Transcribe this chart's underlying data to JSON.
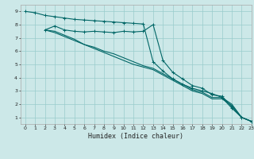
{
  "background_color": "#cce8e8",
  "grid_color": "#99cccc",
  "line_color": "#006666",
  "xlabel": "Humidex (Indice chaleur)",
  "xlim": [
    -0.5,
    23
  ],
  "ylim": [
    0.5,
    9.5
  ],
  "xticks": [
    0,
    1,
    2,
    3,
    4,
    5,
    6,
    7,
    8,
    9,
    10,
    11,
    12,
    13,
    14,
    15,
    16,
    17,
    18,
    19,
    20,
    21,
    22,
    23
  ],
  "yticks": [
    1,
    2,
    3,
    4,
    5,
    6,
    7,
    8,
    9
  ],
  "line1_x": [
    0,
    1,
    2,
    3,
    4,
    5,
    6,
    7,
    8,
    9,
    10,
    11,
    12,
    13,
    14,
    15,
    16,
    17,
    18,
    19,
    20,
    21,
    22,
    23
  ],
  "line1_y": [
    9.0,
    8.9,
    8.7,
    8.6,
    8.5,
    8.4,
    8.35,
    8.3,
    8.25,
    8.2,
    8.15,
    8.1,
    8.05,
    5.2,
    4.5,
    3.9,
    3.5,
    3.2,
    3.0,
    2.8,
    2.5,
    1.7,
    1.0,
    0.7
  ],
  "line2_x": [
    2,
    3,
    4,
    5,
    6,
    7,
    8,
    9,
    10,
    11,
    12,
    13,
    14,
    15,
    16,
    17,
    18,
    19,
    20,
    21,
    22,
    23
  ],
  "line2_y": [
    7.6,
    7.9,
    7.6,
    7.5,
    7.45,
    7.5,
    7.45,
    7.4,
    7.5,
    7.45,
    7.5,
    8.0,
    5.3,
    4.4,
    3.9,
    3.4,
    3.2,
    2.7,
    2.6,
    1.8,
    1.0,
    0.7
  ],
  "line3_x": [
    2,
    3,
    4,
    5,
    6,
    7,
    8,
    9,
    10,
    11,
    12,
    13,
    14,
    15,
    16,
    17,
    18,
    19,
    20,
    21,
    22,
    23
  ],
  "line3_y": [
    7.6,
    7.5,
    7.2,
    6.9,
    6.5,
    6.3,
    6.0,
    5.8,
    5.5,
    5.2,
    4.9,
    4.7,
    4.3,
    3.9,
    3.5,
    3.1,
    2.9,
    2.5,
    2.5,
    2.0,
    1.0,
    0.7
  ],
  "line4_x": [
    2,
    3,
    4,
    5,
    6,
    7,
    8,
    9,
    10,
    11,
    12,
    13,
    14,
    15,
    16,
    17,
    18,
    19,
    20,
    21,
    22,
    23
  ],
  "line4_y": [
    7.6,
    7.4,
    7.1,
    6.8,
    6.5,
    6.2,
    5.9,
    5.6,
    5.3,
    5.0,
    4.8,
    4.6,
    4.2,
    3.8,
    3.4,
    3.0,
    2.8,
    2.4,
    2.4,
    1.9,
    1.0,
    0.7
  ]
}
